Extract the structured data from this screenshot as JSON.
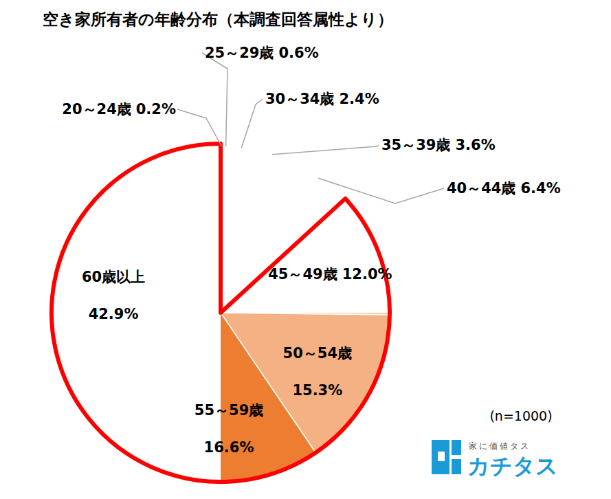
{
  "chart_data": {
    "type": "pie",
    "title": "空き家所有者の年齢分布（本調査回答属性より）",
    "categories": [
      "20～24歳",
      "25～29歳",
      "30～34歳",
      "35～39歳",
      "40～44歳",
      "45～49歳",
      "50～54歳",
      "55～59歳",
      "60歳以上"
    ],
    "values": [
      0.2,
      0.6,
      2.4,
      3.6,
      6.4,
      12.0,
      15.3,
      16.6,
      42.9
    ],
    "value_labels": [
      "0.2%",
      "0.6%",
      "2.4%",
      "3.6%",
      "6.4%",
      "12.0%",
      "15.3%",
      "16.6%",
      "42.9%"
    ],
    "colors": [
      "#f2f2f2",
      "#e3e3e3",
      "#c4c4c4",
      "#a5a5a5",
      "#fbe5d6",
      "#f8cbad",
      "#f4b183",
      "#ed7d31",
      "#00b0f0"
    ],
    "data_labels": true,
    "annotations": [
      "(n=1000)",
      "家に価値タス",
      "カチタス"
    ]
  }
}
